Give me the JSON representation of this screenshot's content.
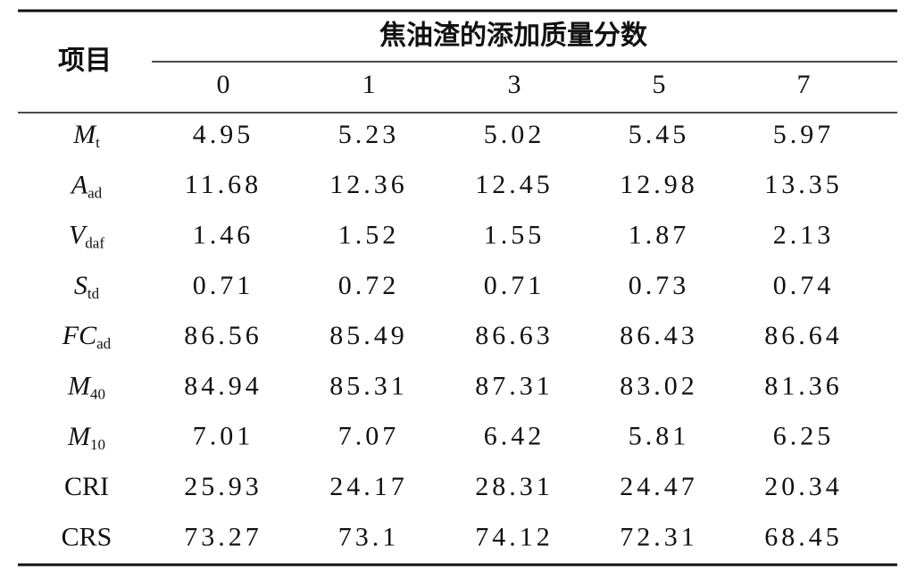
{
  "table": {
    "row_header": "项目",
    "group_header": "焦油渣的添加质量分数",
    "columns": [
      "0",
      "1",
      "3",
      "5",
      "7"
    ],
    "rows": [
      {
        "label": {
          "main": "M",
          "sub": "t"
        },
        "cells": [
          "4.95",
          "5.23",
          "5.02",
          "5.45",
          "5.97"
        ]
      },
      {
        "label": {
          "main": "A",
          "sub": "ad"
        },
        "cells": [
          "11.68",
          "12.36",
          "12.45",
          "12.98",
          "13.35"
        ]
      },
      {
        "label": {
          "main": "V",
          "sub": "daf"
        },
        "cells": [
          "1.46",
          "1.52",
          "1.55",
          "1.87",
          "2.13"
        ]
      },
      {
        "label": {
          "main": "S",
          "sub": "td"
        },
        "cells": [
          "0.71",
          "0.72",
          "0.71",
          "0.73",
          "0.74"
        ]
      },
      {
        "label": {
          "main": "FC",
          "sub": "ad"
        },
        "cells": [
          "86.56",
          "85.49",
          "86.63",
          "86.43",
          "86.64"
        ]
      },
      {
        "label": {
          "main": "M",
          "sub": "40"
        },
        "cells": [
          "84.94",
          "85.31",
          "87.31",
          "83.02",
          "81.36"
        ]
      },
      {
        "label": {
          "main": "M",
          "sub": "10"
        },
        "cells": [
          "7.01",
          "7.07",
          "6.42",
          "5.81",
          "6.25"
        ]
      },
      {
        "label": {
          "main": "CRI"
        },
        "cells": [
          "25.93",
          "24.17",
          "28.31",
          "24.47",
          "20.34"
        ]
      },
      {
        "label": {
          "main": "CRS"
        },
        "cells": [
          "73.27",
          "73.1",
          "74.12",
          "72.31",
          "68.45"
        ]
      }
    ]
  }
}
